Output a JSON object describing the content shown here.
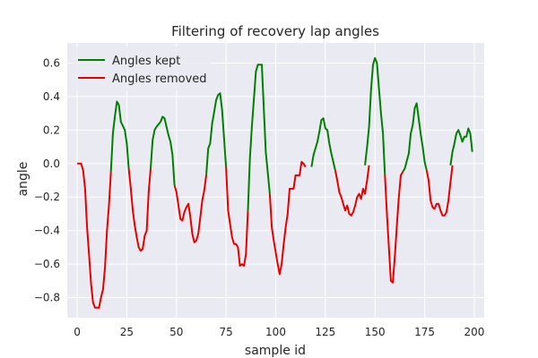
{
  "chart_data": {
    "type": "line",
    "title": "Filtering of recovery lap angles",
    "xlabel": "sample id",
    "ylabel": "angle",
    "xlim": [
      -5,
      205
    ],
    "ylim": [
      -0.92,
      0.72
    ],
    "x_ticks": [
      0,
      25,
      50,
      75,
      100,
      125,
      150,
      175,
      200
    ],
    "y_ticks": [
      -0.8,
      -0.6,
      -0.4,
      -0.2,
      0.0,
      0.2,
      0.4,
      0.6
    ],
    "x_tick_labels": [
      "0",
      "25",
      "50",
      "75",
      "100",
      "125",
      "150",
      "175",
      "200"
    ],
    "y_tick_labels": [
      "−0.8",
      "−0.6",
      "−0.4",
      "−0.2",
      "0.0",
      "0.2",
      "0.4",
      "0.6"
    ],
    "grid": true,
    "legend_position": "top-left",
    "series": [
      {
        "name": "Angles kept",
        "color": "#008000",
        "segments": [
          [
            [
              17,
              -0.05
            ],
            [
              18,
              0.18
            ],
            [
              19,
              0.28
            ],
            [
              20,
              0.37
            ],
            [
              21,
              0.35
            ],
            [
              22,
              0.25
            ],
            [
              24,
              0.2
            ],
            [
              25,
              0.12
            ],
            [
              26,
              -0.03
            ]
          ],
          [
            [
              37,
              -0.03
            ],
            [
              38,
              0.14
            ],
            [
              39,
              0.2
            ],
            [
              40,
              0.22
            ],
            [
              42,
              0.25
            ],
            [
              43,
              0.28
            ],
            [
              44,
              0.27
            ],
            [
              45,
              0.22
            ],
            [
              46,
              0.17
            ],
            [
              47,
              0.13
            ],
            [
              48,
              0.05
            ],
            [
              49,
              -0.13
            ]
          ],
          [
            [
              65,
              -0.07
            ],
            [
              66,
              0.09
            ],
            [
              67,
              0.12
            ],
            [
              68,
              0.24
            ],
            [
              69,
              0.31
            ],
            [
              70,
              0.38
            ],
            [
              71,
              0.41
            ],
            [
              72,
              0.42
            ],
            [
              73,
              0.32
            ],
            [
              74,
              0.15
            ],
            [
              75,
              -0.02
            ]
          ],
          [
            [
              86,
              -0.28
            ],
            [
              87,
              0.03
            ],
            [
              88,
              0.22
            ],
            [
              89,
              0.38
            ],
            [
              90,
              0.55
            ],
            [
              91,
              0.59
            ],
            [
              92,
              0.59
            ],
            [
              93,
              0.59
            ],
            [
              94,
              0.33
            ],
            [
              95,
              0.07
            ],
            [
              97,
              -0.18
            ]
          ],
          [
            [
              118,
              -0.02
            ],
            [
              119,
              0.05
            ],
            [
              121,
              0.13
            ],
            [
              122,
              0.19
            ],
            [
              123,
              0.26
            ],
            [
              124,
              0.27
            ],
            [
              125,
              0.21
            ],
            [
              126,
              0.2
            ],
            [
              127,
              0.12
            ],
            [
              128,
              0.06
            ],
            [
              129,
              0.01
            ],
            [
              130,
              -0.04
            ]
          ],
          [
            [
              145,
              -0.01
            ],
            [
              146,
              0.1
            ],
            [
              147,
              0.22
            ],
            [
              148,
              0.44
            ],
            [
              149,
              0.59
            ],
            [
              150,
              0.63
            ],
            [
              151,
              0.6
            ],
            [
              152,
              0.45
            ],
            [
              153,
              0.3
            ],
            [
              154,
              0.18
            ],
            [
              155,
              -0.07
            ]
          ],
          [
            [
              164,
              -0.05
            ],
            [
              165,
              -0.03
            ],
            [
              167,
              0.06
            ],
            [
              168,
              0.18
            ],
            [
              169,
              0.23
            ],
            [
              170,
              0.33
            ],
            [
              171,
              0.36
            ],
            [
              172,
              0.27
            ],
            [
              173,
              0.18
            ],
            [
              174,
              0.1
            ],
            [
              175,
              0.01
            ],
            [
              176,
              -0.04
            ]
          ],
          [
            [
              188,
              -0.01
            ],
            [
              189,
              0.07
            ],
            [
              190,
              0.12
            ],
            [
              191,
              0.18
            ],
            [
              192,
              0.2
            ],
            [
              193,
              0.17
            ],
            [
              194,
              0.13
            ],
            [
              195,
              0.16
            ],
            [
              196,
              0.16
            ],
            [
              197,
              0.21
            ],
            [
              198,
              0.18
            ],
            [
              199,
              0.07
            ]
          ]
        ]
      },
      {
        "name": "Angles removed",
        "color": "#e60000",
        "segments": [
          [
            [
              0,
              0.0
            ],
            [
              1,
              0.0
            ],
            [
              2,
              0.0
            ],
            [
              3,
              -0.04
            ],
            [
              4,
              -0.15
            ],
            [
              5,
              -0.38
            ],
            [
              6,
              -0.55
            ],
            [
              7,
              -0.72
            ],
            [
              8,
              -0.83
            ],
            [
              9,
              -0.86
            ],
            [
              11,
              -0.86
            ],
            [
              12,
              -0.8
            ],
            [
              13,
              -0.75
            ],
            [
              14,
              -0.62
            ],
            [
              15,
              -0.4
            ],
            [
              16,
              -0.25
            ],
            [
              17,
              -0.05
            ]
          ],
          [
            [
              26,
              -0.03
            ],
            [
              27,
              -0.15
            ],
            [
              28,
              -0.28
            ],
            [
              29,
              -0.37
            ],
            [
              30,
              -0.44
            ],
            [
              31,
              -0.5
            ],
            [
              32,
              -0.52
            ],
            [
              33,
              -0.51
            ],
            [
              34,
              -0.43
            ],
            [
              35,
              -0.4
            ],
            [
              36,
              -0.17
            ],
            [
              37,
              -0.03
            ]
          ],
          [
            [
              49,
              -0.13
            ],
            [
              50,
              -0.17
            ],
            [
              51,
              -0.25
            ],
            [
              52,
              -0.33
            ],
            [
              53,
              -0.34
            ],
            [
              54,
              -0.29
            ],
            [
              55,
              -0.26
            ],
            [
              56,
              -0.24
            ],
            [
              57,
              -0.32
            ],
            [
              58,
              -0.42
            ],
            [
              59,
              -0.47
            ],
            [
              60,
              -0.46
            ],
            [
              61,
              -0.42
            ],
            [
              62,
              -0.32
            ],
            [
              63,
              -0.22
            ],
            [
              64,
              -0.16
            ],
            [
              65,
              -0.07
            ]
          ],
          [
            [
              75,
              -0.02
            ],
            [
              76,
              -0.28
            ],
            [
              77,
              -0.36
            ],
            [
              78,
              -0.44
            ],
            [
              79,
              -0.48
            ],
            [
              80,
              -0.48
            ],
            [
              81,
              -0.5
            ],
            [
              82,
              -0.61
            ],
            [
              83,
              -0.6
            ],
            [
              84,
              -0.61
            ],
            [
              85,
              -0.54
            ],
            [
              86,
              -0.28
            ]
          ],
          [
            [
              97,
              -0.18
            ],
            [
              98,
              -0.38
            ],
            [
              99,
              -0.46
            ],
            [
              100,
              -0.53
            ],
            [
              101,
              -0.6
            ],
            [
              102,
              -0.66
            ],
            [
              103,
              -0.6
            ],
            [
              104,
              -0.48
            ],
            [
              105,
              -0.38
            ],
            [
              106,
              -0.3
            ],
            [
              107,
              -0.15
            ],
            [
              109,
              -0.15
            ],
            [
              110,
              -0.07
            ],
            [
              112,
              -0.07
            ],
            [
              113,
              0.01
            ],
            [
              114,
              0.0
            ],
            [
              115,
              -0.02
            ]
          ],
          [
            [
              130,
              -0.04
            ],
            [
              131,
              -0.1
            ],
            [
              132,
              -0.17
            ],
            [
              133,
              -0.2
            ],
            [
              134,
              -0.24
            ],
            [
              135,
              -0.28
            ],
            [
              136,
              -0.25
            ],
            [
              137,
              -0.3
            ],
            [
              138,
              -0.31
            ],
            [
              139,
              -0.29
            ],
            [
              140,
              -0.25
            ],
            [
              141,
              -0.2
            ],
            [
              142,
              -0.18
            ],
            [
              143,
              -0.21
            ],
            [
              144,
              -0.15
            ],
            [
              145,
              -0.18
            ],
            [
              146,
              -0.1
            ],
            [
              147,
              -0.01
            ]
          ],
          [
            [
              155,
              -0.07
            ],
            [
              156,
              -0.3
            ],
            [
              157,
              -0.5
            ],
            [
              158,
              -0.7
            ],
            [
              159,
              -0.71
            ],
            [
              160,
              -0.55
            ],
            [
              161,
              -0.37
            ],
            [
              162,
              -0.2
            ],
            [
              163,
              -0.07
            ],
            [
              164,
              -0.05
            ]
          ],
          [
            [
              176,
              -0.04
            ],
            [
              177,
              -0.1
            ],
            [
              178,
              -0.22
            ],
            [
              179,
              -0.26
            ],
            [
              180,
              -0.27
            ],
            [
              181,
              -0.24
            ],
            [
              182,
              -0.24
            ],
            [
              183,
              -0.28
            ],
            [
              184,
              -0.31
            ],
            [
              185,
              -0.31
            ],
            [
              186,
              -0.29
            ],
            [
              187,
              -0.22
            ],
            [
              188,
              -0.11
            ],
            [
              189,
              -0.01
            ]
          ]
        ]
      }
    ]
  }
}
